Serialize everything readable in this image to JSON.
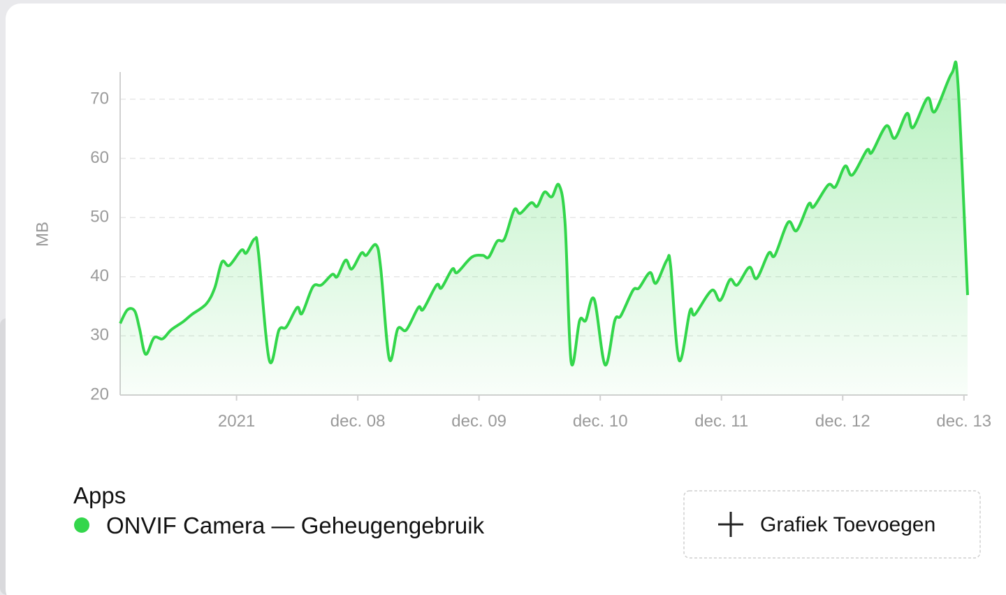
{
  "chart_data": {
    "type": "line",
    "ylabel": "MB",
    "legend_title": "Apps",
    "x": [
      6.04,
      6.1,
      6.16,
      6.2,
      6.25,
      6.32,
      6.39,
      6.46,
      6.56,
      6.63,
      6.75,
      6.82,
      6.88,
      6.94,
      7.04,
      7.08,
      7.15,
      7.18,
      7.27,
      7.35,
      7.41,
      7.5,
      7.54,
      7.63,
      7.7,
      7.79,
      7.83,
      7.9,
      7.95,
      8.03,
      8.07,
      8.15,
      8.19,
      8.26,
      8.33,
      8.4,
      8.5,
      8.54,
      8.65,
      8.69,
      8.78,
      8.82,
      8.94,
      9.03,
      9.08,
      9.15,
      9.21,
      9.29,
      9.34,
      9.43,
      9.48,
      9.54,
      9.6,
      9.66,
      9.71,
      9.76,
      9.83,
      9.88,
      9.95,
      10.04,
      10.12,
      10.17,
      10.27,
      10.32,
      10.41,
      10.46,
      10.55,
      10.58,
      10.65,
      10.74,
      10.78,
      10.92,
      10.99,
      11.07,
      11.13,
      11.23,
      11.29,
      11.39,
      11.44,
      11.55,
      11.62,
      11.72,
      11.76,
      11.88,
      11.94,
      12.02,
      12.08,
      12.2,
      12.24,
      12.36,
      12.43,
      12.53,
      12.58,
      12.7,
      12.76,
      12.9,
      12.95,
      13.03
    ],
    "series": [
      {
        "name": "ONVIF Camera — Geheugengebruik",
        "color": "#33d64b",
        "values": [
          32.1,
          34.4,
          34.2,
          31.2,
          26.9,
          29.7,
          29.5,
          31.0,
          32.4,
          33.6,
          35.4,
          38.1,
          42.5,
          41.9,
          44.5,
          44.0,
          46.4,
          44.2,
          25.9,
          31.0,
          31.5,
          34.8,
          33.8,
          38.3,
          38.6,
          40.4,
          40.0,
          42.8,
          41.3,
          44.0,
          43.6,
          45.4,
          41.3,
          26.1,
          31.2,
          31.0,
          34.8,
          34.5,
          38.6,
          38.1,
          41.3,
          40.7,
          43.3,
          43.6,
          43.3,
          46.0,
          46.4,
          51.3,
          50.7,
          52.5,
          51.9,
          54.3,
          53.5,
          55.5,
          49.0,
          25.6,
          32.6,
          32.6,
          36.2,
          25.1,
          32.6,
          33.4,
          37.7,
          38.1,
          40.7,
          38.9,
          42.8,
          41.9,
          25.9,
          34.2,
          33.6,
          37.7,
          36.0,
          39.5,
          38.6,
          41.6,
          39.7,
          44.0,
          43.6,
          49.2,
          47.8,
          52.3,
          51.8,
          55.5,
          55.2,
          58.7,
          57.2,
          61.4,
          61.0,
          65.5,
          63.4,
          67.6,
          65.2,
          70.2,
          67.9,
          74.4,
          72.8,
          36.9
        ]
      }
    ],
    "xlim": [
      6.04,
      13.03
    ],
    "xticks": [
      {
        "value": 7,
        "label": "2021"
      },
      {
        "value": 8,
        "label": "dec. 08"
      },
      {
        "value": 9,
        "label": "dec. 09"
      },
      {
        "value": 10,
        "label": "dec. 10"
      },
      {
        "value": 11,
        "label": "dec. 11"
      },
      {
        "value": 12,
        "label": "dec. 12"
      },
      {
        "value": 13,
        "label": "dec. 13"
      }
    ],
    "ylim": [
      20,
      74.6
    ],
    "yticks": [
      20,
      30,
      40,
      50,
      60,
      70
    ],
    "grid": true
  },
  "button": {
    "label": "Grafiek Toevoegen"
  }
}
